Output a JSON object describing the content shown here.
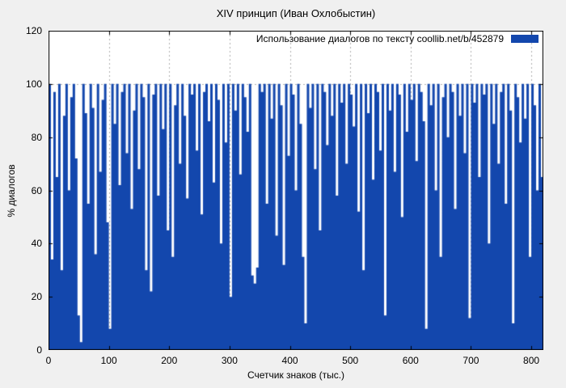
{
  "chart_data": {
    "type": "area",
    "title": "XIV принцип (Иван Охлобыстин)",
    "xlabel": "Счетчик знаков (тыс.)",
    "ylabel": "% диалогов",
    "xlim": [
      0,
      820
    ],
    "ylim": [
      0,
      120
    ],
    "x_ticks": [
      0,
      100,
      200,
      300,
      400,
      500,
      600,
      700,
      800
    ],
    "y_ticks": [
      0,
      20,
      40,
      60,
      80,
      100,
      120
    ],
    "grid": "dotted vertical lines at x ticks, dotted horizontal line at y=100",
    "legend_position": "top-right inside plot",
    "colors": {
      "background": "#f0f0f0",
      "plot_background": "#ffffff",
      "grid": "#b0b0b0",
      "border": "#000000"
    },
    "series": [
      {
        "name": "Использование диалогов по тексту  coollib.net/b/452879",
        "color": "#1347ad",
        "x_start": 0,
        "x_step": 4,
        "values": [
          100,
          34,
          97,
          65,
          100,
          30,
          88,
          100,
          60,
          95,
          100,
          72,
          13,
          3,
          100,
          89,
          55,
          100,
          91,
          36,
          100,
          67,
          94,
          100,
          48,
          8,
          100,
          85,
          100,
          62,
          97,
          100,
          74,
          100,
          53,
          90,
          100,
          68,
          100,
          95,
          30,
          100,
          22,
          96,
          100,
          58,
          100,
          83,
          100,
          45,
          100,
          35,
          92,
          100,
          70,
          100,
          88,
          57,
          100,
          96,
          100,
          75,
          100,
          51,
          97,
          100,
          86,
          100,
          63,
          100,
          94,
          40,
          100,
          78,
          100,
          20,
          100,
          90,
          100,
          66,
          100,
          95,
          82,
          100,
          28,
          25,
          31,
          100,
          97,
          100,
          55,
          100,
          87,
          100,
          43,
          100,
          92,
          32,
          100,
          73,
          100,
          96,
          60,
          100,
          85,
          35,
          10,
          100,
          91,
          100,
          68,
          100,
          45,
          100,
          97,
          77,
          100,
          88,
          100,
          58,
          100,
          93,
          100,
          70,
          100,
          96,
          84,
          100,
          52,
          100,
          30,
          100,
          89,
          100,
          64,
          100,
          97,
          75,
          100,
          13,
          100,
          90,
          100,
          67,
          100,
          96,
          50,
          100,
          82,
          100,
          94,
          100,
          71,
          100,
          97,
          86,
          8,
          100,
          92,
          100,
          60,
          100,
          35,
          95,
          100,
          80,
          100,
          97,
          53,
          100,
          88,
          100,
          74,
          100,
          12,
          100,
          93,
          100,
          65,
          100,
          96,
          100,
          40,
          100,
          85,
          100,
          70,
          97,
          100,
          55,
          100,
          90,
          10,
          100,
          95,
          78,
          100,
          87,
          100,
          35,
          100,
          92,
          60,
          100,
          65
        ]
      }
    ]
  }
}
